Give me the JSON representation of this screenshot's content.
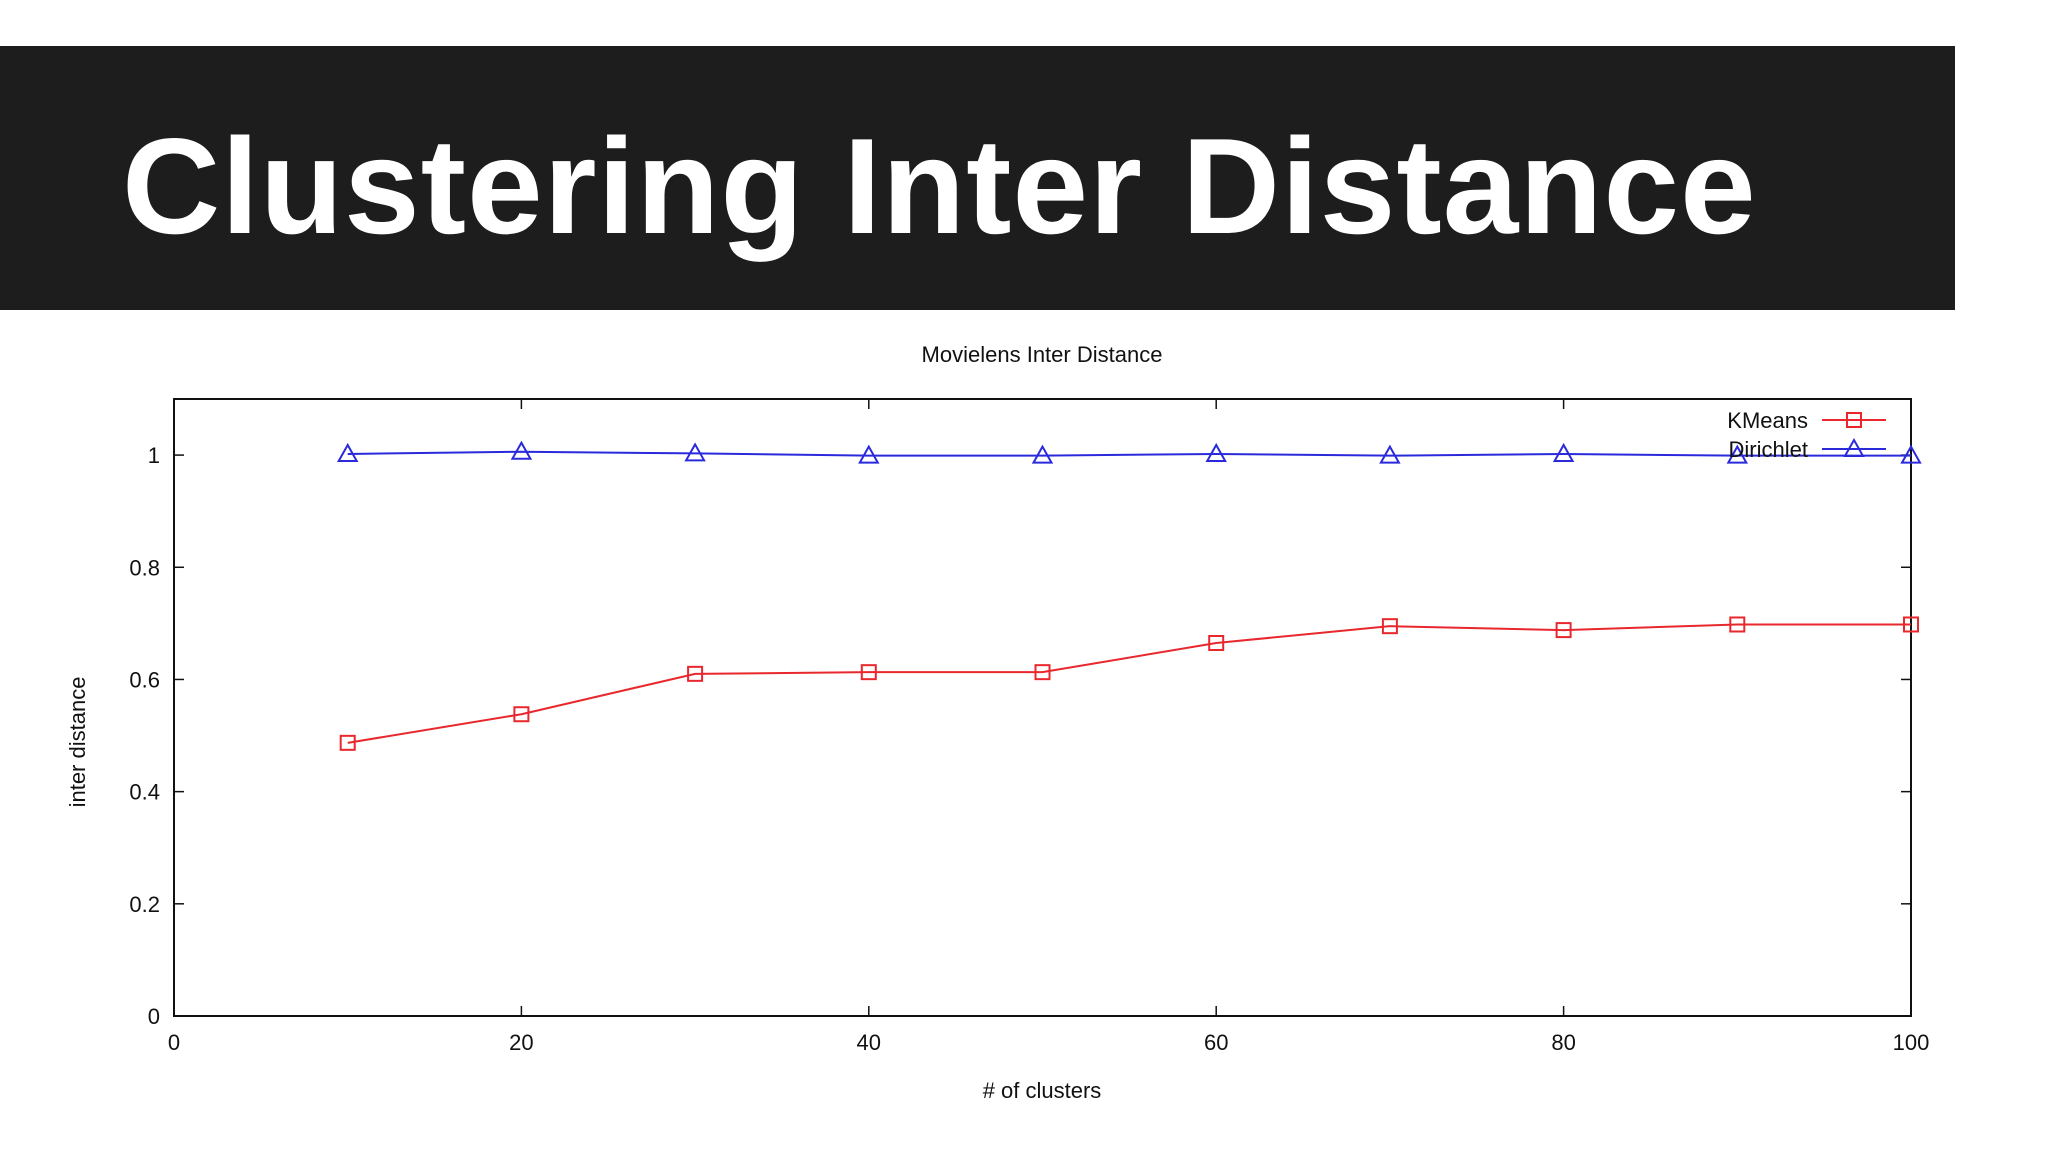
{
  "slide": {
    "title": "Clustering Inter Distance"
  },
  "chart_data": {
    "type": "line",
    "title": "Movielens Inter Distance",
    "xlabel": "# of clusters",
    "ylabel": "inter distance",
    "xlim": [
      0,
      100
    ],
    "ylim": [
      0,
      1.1
    ],
    "xticks": [
      0,
      20,
      40,
      60,
      80,
      100
    ],
    "xtick_labels": [
      "0",
      "20",
      "40",
      "60",
      "80",
      "100"
    ],
    "yticks": [
      0,
      0.2,
      0.4,
      0.6,
      0.8,
      1
    ],
    "ytick_labels": [
      "0",
      "0.2",
      "0.4",
      "0.6",
      "0.8",
      "1"
    ],
    "grid": false,
    "legend_position": "top-right",
    "x": [
      10,
      20,
      30,
      40,
      50,
      60,
      70,
      80,
      90,
      100
    ],
    "series": [
      {
        "name": "KMeans",
        "color": "#e8282d",
        "marker": "square",
        "values": [
          0.487,
          0.538,
          0.61,
          0.613,
          0.613,
          0.665,
          0.695,
          0.688,
          0.698,
          0.698
        ]
      },
      {
        "name": "Dirichlet",
        "color": "#2a2adc",
        "marker": "triangle",
        "values": [
          1.002,
          1.006,
          1.003,
          0.999,
          0.999,
          1.002,
          0.999,
          1.002,
          0.999,
          0.999
        ]
      }
    ]
  }
}
